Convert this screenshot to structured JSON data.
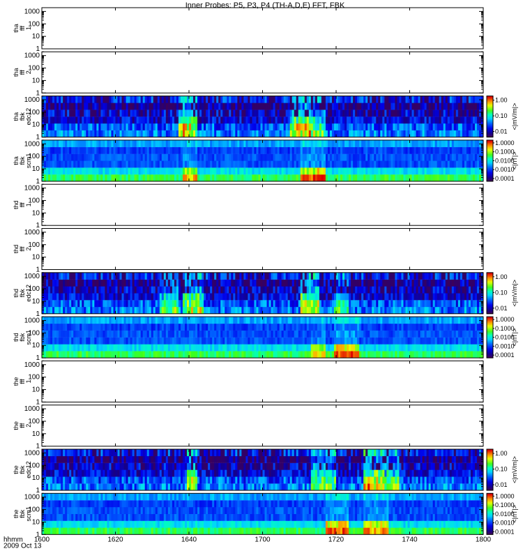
{
  "chart_data": {
    "type": "heatmap",
    "title": "Inner Probes: P5, P3, P4 (TH-A,D,E) FFT, FBK",
    "x_axis": {
      "name": "hhmm",
      "date": "2009 Oct 13",
      "ticks": [
        "1600",
        "1620",
        "1640",
        "1700",
        "1720",
        "1740",
        "1800"
      ],
      "range": [
        "16:00",
        "18:00"
      ]
    },
    "y_scale": "log",
    "y_range": [
      1,
      2000
    ],
    "y_ticks": [
      "1",
      "10",
      "100",
      "1000"
    ],
    "colorbar_e": {
      "label": "<|mV/m|>",
      "ticks": [
        "1.00",
        "0.10",
        "0.01"
      ],
      "scale": "log"
    },
    "colorbar_b": {
      "label": "<|nT|>",
      "ticks": [
        "1.0000",
        "0.1000",
        "0.0100",
        "0.0010",
        "0.0001"
      ],
      "scale": "log"
    },
    "panels": [
      {
        "label": [
          "tha",
          "fff",
          "1"
        ],
        "kind": "empty"
      },
      {
        "label": [
          "tha",
          "fff",
          "2"
        ],
        "kind": "empty"
      },
      {
        "label": [
          "tha",
          "fbk",
          "edc12"
        ],
        "kind": "e",
        "colorbar": "colorbar_e",
        "events": [
          [
            1637,
            1641,
            0.85
          ],
          [
            1707,
            1712,
            0.9
          ],
          [
            1712,
            1716,
            0.6
          ]
        ]
      },
      {
        "label": [
          "tha",
          "fbk",
          "scm1"
        ],
        "kind": "b",
        "colorbar": "colorbar_b",
        "events": [
          [
            1638,
            1641,
            0.55
          ],
          [
            1710,
            1716,
            0.7
          ]
        ]
      },
      {
        "label": [
          "thd",
          "fff",
          "1"
        ],
        "kind": "empty"
      },
      {
        "label": [
          "thd",
          "fff",
          "2"
        ],
        "kind": "empty"
      },
      {
        "label": [
          "thd",
          "fbk",
          "edc12"
        ],
        "kind": "e",
        "colorbar": "colorbar_e",
        "events": [
          [
            1632,
            1636,
            0.6
          ],
          [
            1638,
            1643,
            0.7
          ],
          [
            1710,
            1714,
            0.85
          ],
          [
            1719,
            1722,
            0.5
          ]
        ]
      },
      {
        "label": [
          "thd",
          "fbk",
          "scm1"
        ],
        "kind": "b",
        "colorbar": "colorbar_b",
        "events": [
          [
            1713,
            1716,
            0.45
          ],
          [
            1719,
            1725,
            0.8
          ]
        ]
      },
      {
        "label": [
          "the",
          "fff",
          "1"
        ],
        "kind": "empty"
      },
      {
        "label": [
          "the",
          "fff",
          "2"
        ],
        "kind": "empty"
      },
      {
        "label": [
          "the",
          "fbk",
          "edc12"
        ],
        "kind": "e",
        "colorbar": "colorbar_e",
        "events": [
          [
            1639,
            1641,
            0.8
          ],
          [
            1713,
            1719,
            0.6
          ],
          [
            1727,
            1732,
            0.95
          ],
          [
            1733,
            1736,
            0.7
          ]
        ]
      },
      {
        "label": [
          "the",
          "fbk",
          "scm1"
        ],
        "kind": "b",
        "colorbar": "colorbar_b",
        "events": [
          [
            1717,
            1722,
            0.8
          ],
          [
            1727,
            1733,
            0.65
          ]
        ]
      }
    ]
  }
}
